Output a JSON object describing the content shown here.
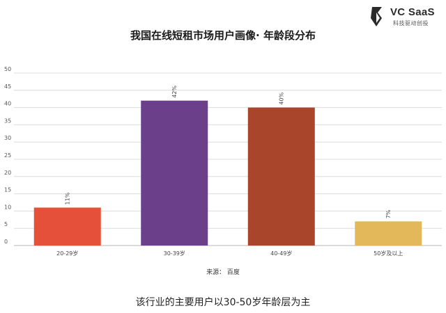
{
  "logo": {
    "name": "VC SaaS",
    "tagline": "科技驱动创投"
  },
  "caption": "该行业的主要用户以30-50岁年龄层为主",
  "source": "来源： 百度",
  "chart_data": {
    "type": "bar",
    "title": "我国在线短租市场用户画像· 年龄段分布",
    "categories": [
      "20-29岁",
      "30-39岁",
      "40-49岁",
      "50岁及以上"
    ],
    "values": [
      11,
      42,
      40,
      7
    ],
    "data_labels": [
      "11%",
      "42%",
      "40%",
      "7%"
    ],
    "colors": [
      "#e4503a",
      "#6c3f8a",
      "#a8452a",
      "#e3b85a"
    ],
    "ylim": [
      0,
      50
    ],
    "yticks": [
      0,
      5,
      10,
      15,
      20,
      25,
      30,
      35,
      40,
      45,
      50
    ],
    "grid": true,
    "legend": false
  }
}
